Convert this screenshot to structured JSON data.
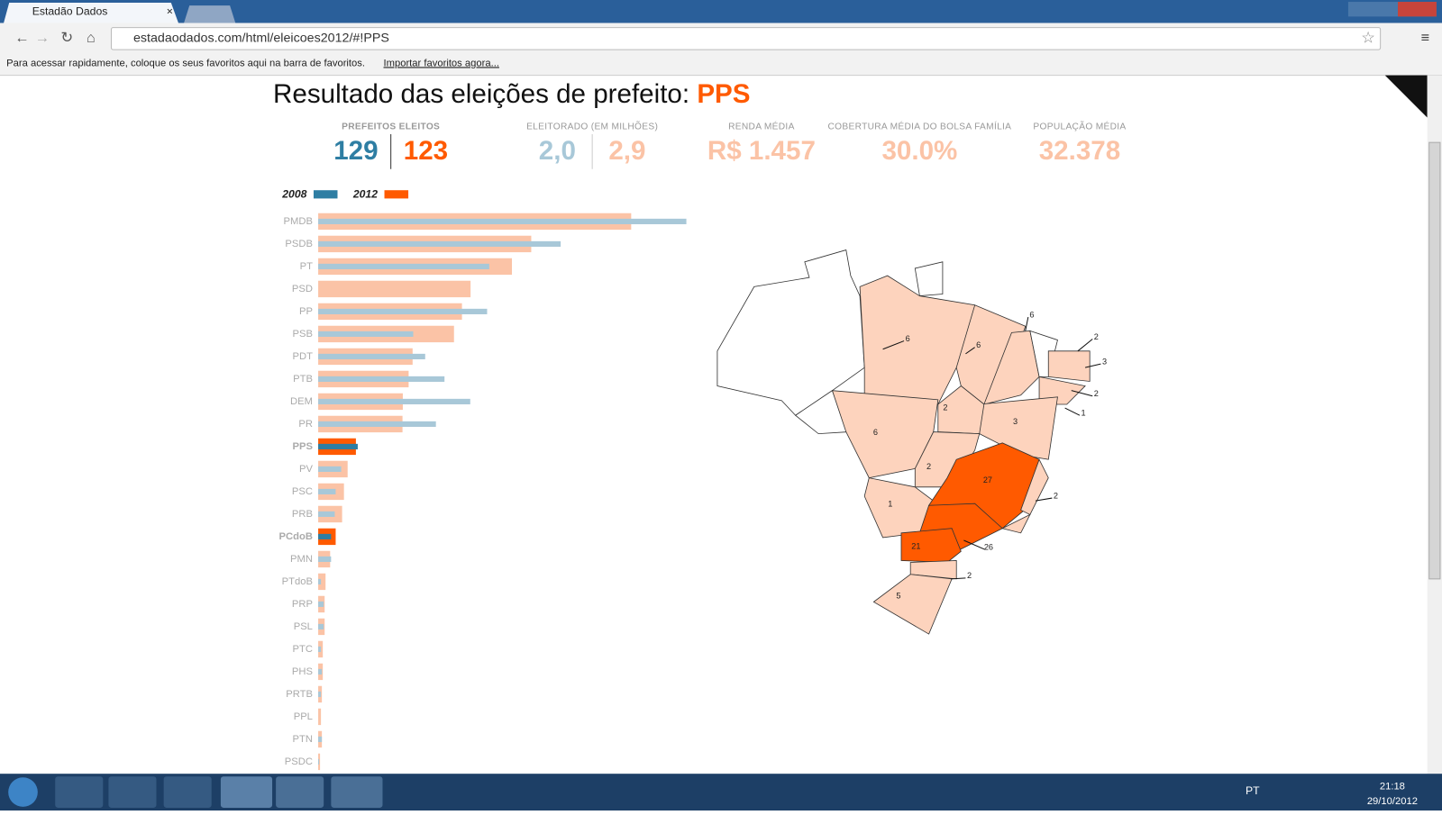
{
  "browser": {
    "tab_title": "Estadão Dados",
    "url": "estadaodados.com/html/eleicoes2012/#!PPS",
    "bookmarks_hint": "Para acessar rapidamente, coloque os seus favoritos aqui na barra de favoritos.",
    "bookmarks_link": "Importar favoritos agora..."
  },
  "page": {
    "title": "Resultado das eleições de prefeito: ",
    "party": "PPS",
    "stats": [
      {
        "label": "PREFEITOS ELEITOS",
        "values": [
          "129",
          "123"
        ]
      },
      {
        "label": "ELEITORADO (EM MILHÕES)",
        "values": [
          "2,0",
          "2,9"
        ]
      },
      {
        "label": "RENDA MÉDIA",
        "values": [
          "R$ 1.457"
        ]
      },
      {
        "label": "COBERTURA MÉDIA DO BOLSA FAMÍLIA",
        "values": [
          "30.0%"
        ]
      },
      {
        "label": "POPULAÇÃO MÉDIA",
        "values": [
          "32.378"
        ]
      }
    ]
  },
  "chart_data": {
    "type": "bar",
    "orientation": "horizontal",
    "categories": [
      "PMDB",
      "PSDB",
      "PT",
      "PSD",
      "PP",
      "PSB",
      "PDT",
      "PTB",
      "DEM",
      "PR",
      "PPS",
      "PV",
      "PSC",
      "PRB",
      "PCdoB",
      "PMN",
      "PTdoB",
      "PRP",
      "PSL",
      "PTC",
      "PHS",
      "PRTB",
      "PPL",
      "PTN",
      "PSDC"
    ],
    "highlighted": [
      10,
      14
    ],
    "series": [
      {
        "name": "2012",
        "color": "#fbc3a6",
        "highlight_color": "#ff5a00",
        "values": [
          1021,
          695,
          632,
          497,
          469,
          443,
          308,
          295,
          276,
          275,
          123,
          96,
          84,
          78,
          57,
          39,
          24,
          21,
          21,
          15,
          15,
          12,
          9,
          12,
          6
        ]
      },
      {
        "name": "2008",
        "color": "#a8c8d8",
        "highlight_color": "#2e7ea3",
        "values": [
          1201,
          791,
          558,
          0,
          551,
          310,
          349,
          412,
          496,
          384,
          129,
          75,
          57,
          54,
          42,
          42,
          9,
          18,
          18,
          9,
          12,
          9,
          0,
          12,
          3
        ]
      }
    ]
  },
  "map": {
    "state_counts": [
      6,
      6,
      6,
      2,
      3,
      2,
      1,
      2,
      3,
      6,
      2,
      27,
      2,
      1,
      21,
      26,
      2,
      5
    ]
  },
  "taskbar": {
    "language": "PT",
    "time": "21:18",
    "date": "29/10/2012"
  }
}
